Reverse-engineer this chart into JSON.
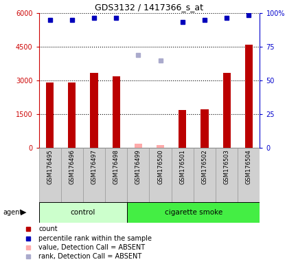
{
  "title": "GDS3132 / 1417366_s_at",
  "samples": [
    "GSM176495",
    "GSM176496",
    "GSM176497",
    "GSM176498",
    "GSM176499",
    "GSM176500",
    "GSM176501",
    "GSM176502",
    "GSM176503",
    "GSM176504"
  ],
  "counts": [
    2900,
    2920,
    3350,
    3200,
    null,
    null,
    1700,
    1720,
    3350,
    4600
  ],
  "counts_absent": [
    null,
    null,
    null,
    null,
    200,
    130,
    null,
    null,
    null,
    null
  ],
  "percentile_ranks_left_scale": [
    5700,
    5700,
    5800,
    5800,
    null,
    null,
    5600,
    5700,
    5800,
    5900
  ],
  "percentile_ranks_absent_left_scale": [
    null,
    null,
    null,
    null,
    4150,
    3900,
    null,
    null,
    null,
    null
  ],
  "bar_color": "#bb0000",
  "bar_absent_color": "#ffaaaa",
  "dot_color": "#0000bb",
  "dot_absent_color": "#aaaacc",
  "control_group": [
    0,
    1,
    2,
    3
  ],
  "smoke_group": [
    4,
    5,
    6,
    7,
    8,
    9
  ],
  "control_label": "control",
  "smoke_label": "cigarette smoke",
  "agent_label": "agent",
  "control_bg": "#ccffcc",
  "smoke_bg": "#44ee44",
  "ylim_left": [
    0,
    6000
  ],
  "ylim_right": [
    0,
    100
  ],
  "yticks_left": [
    0,
    1500,
    3000,
    4500,
    6000
  ],
  "ytick_labels_left": [
    "0",
    "1500",
    "3000",
    "4500",
    "6000"
  ],
  "yticks_right": [
    0,
    25,
    50,
    75,
    100
  ],
  "ytick_labels_right": [
    "0",
    "25",
    "50",
    "75",
    "100%"
  ],
  "left_axis_color": "#cc0000",
  "right_axis_color": "#0000cc",
  "bar_width": 0.35,
  "legend_items": [
    {
      "label": "count",
      "color": "#bb0000",
      "marker": "s"
    },
    {
      "label": "percentile rank within the sample",
      "color": "#0000bb",
      "marker": "s"
    },
    {
      "label": "value, Detection Call = ABSENT",
      "color": "#ffaaaa",
      "marker": "s"
    },
    {
      "label": "rank, Detection Call = ABSENT",
      "color": "#aaaacc",
      "marker": "s"
    }
  ]
}
